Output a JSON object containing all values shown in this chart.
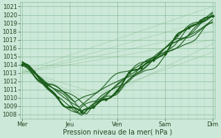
{
  "xlabel": "Pression niveau de la mer( hPa )",
  "bg_color": "#cce8d8",
  "grid_major_color": "#88bb99",
  "grid_minor_color": "#aad4bb",
  "line_dark": "#1a5c1a",
  "line_light": "#3a8a3a",
  "line_dot": "#6aaa6a",
  "ylim": [
    1007.5,
    1021.5
  ],
  "yticks": [
    1008,
    1009,
    1010,
    1011,
    1012,
    1013,
    1014,
    1015,
    1016,
    1017,
    1018,
    1019,
    1020,
    1021
  ],
  "day_labels": [
    "Mer",
    "Jeu",
    "Ven",
    "Sam",
    "Dim"
  ],
  "day_positions": [
    0,
    1,
    2,
    3,
    4
  ],
  "xlabel_fontsize": 7,
  "tick_fontsize": 6
}
